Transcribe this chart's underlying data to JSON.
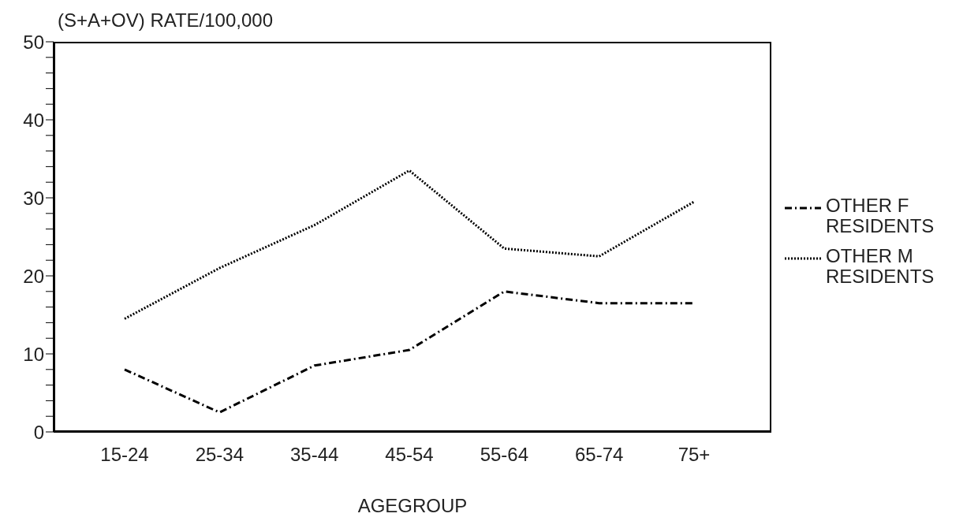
{
  "chart_data": {
    "type": "line",
    "ylabel": "(S+A+OV) RATE/100,000",
    "xlabel": "AGEGROUP",
    "categories": [
      "15-24",
      "25-34",
      "35-44",
      "45-54",
      "55-64",
      "65-74",
      "75+"
    ],
    "series": [
      {
        "name": "OTHER F RESIDENTS",
        "color": "#000000",
        "line_style": "dashed",
        "values": [
          8,
          2.5,
          8.5,
          10.5,
          18,
          16.5,
          16.5
        ]
      },
      {
        "name": "OTHER M RESIDENTS",
        "color": "#000000",
        "line_style": "dotted",
        "values": [
          14.5,
          21,
          26.5,
          33.5,
          23.5,
          22.5,
          29.5
        ]
      }
    ],
    "ylim": [
      0,
      50
    ],
    "yticks": [
      0,
      {
        "value": 2,
        "label": null
      },
      {
        "value": 4,
        "label": null
      },
      {
        "value": 6,
        "label": null
      },
      {
        "value": 8,
        "label": null
      },
      10,
      {
        "value": 12,
        "label": null
      },
      {
        "value": 14,
        "label": null
      },
      {
        "value": 16,
        "label": null
      },
      {
        "value": 18,
        "label": null
      },
      20,
      {
        "value": 22,
        "label": null
      },
      {
        "value": 24,
        "label": null
      },
      {
        "value": 26,
        "label": null
      },
      {
        "value": 28,
        "label": null
      },
      30,
      {
        "value": 32,
        "label": null
      },
      {
        "value": 34,
        "label": null
      },
      {
        "value": 36,
        "label": null
      },
      {
        "value": 38,
        "label": null
      },
      40,
      {
        "value": 42,
        "label": null
      },
      {
        "value": 44,
        "label": null
      },
      {
        "value": 46,
        "label": null
      },
      {
        "value": 48,
        "label": null
      },
      50
    ],
    "legend": "right",
    "marker": "none"
  }
}
